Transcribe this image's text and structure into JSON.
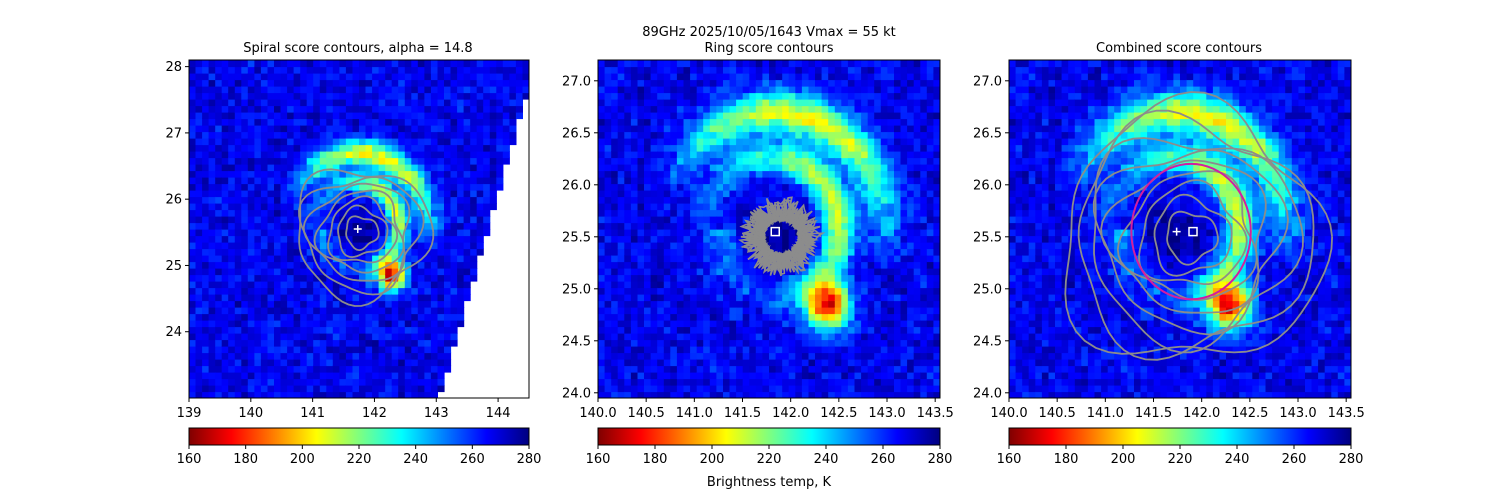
{
  "figure": {
    "suptitle_line1": "89GHz  2025/10/05/1643    Vmax = 55 kt",
    "colorbar_label": "Brightness temp, K"
  },
  "colors": {
    "contour": "#8c8c8c",
    "circle": "#d21fa0",
    "center_marker": "#ffffff"
  },
  "colormap": {
    "name": "jet_r",
    "stops": [
      "#7f0000",
      "#ff0000",
      "#ff7f00",
      "#ffff00",
      "#7fff7f",
      "#00ffff",
      "#007fff",
      "#0000ff",
      "#00007f"
    ]
  },
  "chart_data": [
    {
      "type": "heatmap",
      "title": "Spiral score contours, alpha = 14.8",
      "xlim": [
        139.0,
        144.5
      ],
      "ylim": [
        23.0,
        28.1
      ],
      "xticks": [
        "139",
        "140",
        "141",
        "142",
        "143",
        "144"
      ],
      "yticks": [
        "24",
        "25",
        "26",
        "27",
        "28"
      ],
      "xtick_values": [
        139,
        140,
        141,
        142,
        143,
        144
      ],
      "ytick_values": [
        24,
        25,
        26,
        27,
        28
      ],
      "center_plus": [
        141.73,
        25.55
      ],
      "center_square": null,
      "circle": null,
      "contour_levels": 7,
      "swath_edge": [
        [
          143.05,
          23.0
        ],
        [
          144.5,
          27.7
        ]
      ],
      "colorbar": {
        "min": 160,
        "max": 280,
        "ticks": [
          "160",
          "180",
          "200",
          "220",
          "240",
          "260",
          "280"
        ]
      }
    },
    {
      "type": "heatmap",
      "title": "Ring score contours",
      "xlim": [
        140.0,
        143.55
      ],
      "ylim": [
        23.95,
        27.2
      ],
      "xticks": [
        "140.0",
        "140.5",
        "141.0",
        "141.5",
        "142.0",
        "142.5",
        "143.0",
        "143.5"
      ],
      "yticks": [
        "24.0",
        "24.5",
        "25.0",
        "25.5",
        "26.0",
        "26.5",
        "27.0"
      ],
      "xtick_values": [
        140.0,
        140.5,
        141.0,
        141.5,
        142.0,
        142.5,
        143.0,
        143.5
      ],
      "ytick_values": [
        24.0,
        24.5,
        25.0,
        25.5,
        26.0,
        26.5,
        27.0
      ],
      "center_plus": null,
      "center_square": [
        141.84,
        25.55
      ],
      "circle": null,
      "contour_levels": 18,
      "colorbar": {
        "min": 160,
        "max": 280,
        "ticks": [
          "160",
          "180",
          "200",
          "220",
          "240",
          "260",
          "280"
        ]
      }
    },
    {
      "type": "heatmap",
      "title": "Combined score contours",
      "xlim": [
        140.0,
        143.55
      ],
      "ylim": [
        23.95,
        27.2
      ],
      "xticks": [
        "140.0",
        "140.5",
        "141.0",
        "141.5",
        "142.0",
        "142.5",
        "143.0",
        "143.5"
      ],
      "yticks": [
        "24.0",
        "24.5",
        "25.0",
        "25.5",
        "26.0",
        "26.5",
        "27.0"
      ],
      "xtick_values": [
        140.0,
        140.5,
        141.0,
        141.5,
        142.0,
        142.5,
        143.0,
        143.5
      ],
      "ytick_values": [
        24.0,
        24.5,
        25.0,
        25.5,
        26.0,
        26.5,
        27.0
      ],
      "center_plus": [
        141.74,
        25.55
      ],
      "center_square": [
        141.91,
        25.55
      ],
      "circle": {
        "center": [
          141.89,
          25.55
        ],
        "radius_deg": 0.62
      },
      "contour_levels": 9,
      "colorbar": {
        "min": 160,
        "max": 280,
        "ticks": [
          "160",
          "180",
          "200",
          "220",
          "240",
          "260",
          "280"
        ]
      }
    }
  ]
}
